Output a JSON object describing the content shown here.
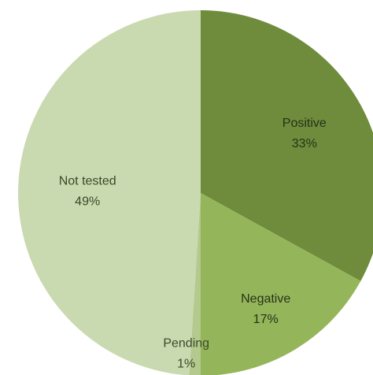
{
  "chart_data": {
    "type": "pie",
    "title": "",
    "start": "top",
    "direction": "clockwise",
    "slices": [
      {
        "label": "Positive",
        "value": 33,
        "value_label": "33%",
        "color": "#6e8c3c"
      },
      {
        "label": "Negative",
        "value": 17,
        "value_label": "17%",
        "color": "#95b55a"
      },
      {
        "label": "Pending",
        "value": 1,
        "value_label": "1%",
        "color": "#b3c98d"
      },
      {
        "label": "Not tested",
        "value": 49,
        "value_label": "49%",
        "color": "#c9d9b0"
      }
    ]
  }
}
